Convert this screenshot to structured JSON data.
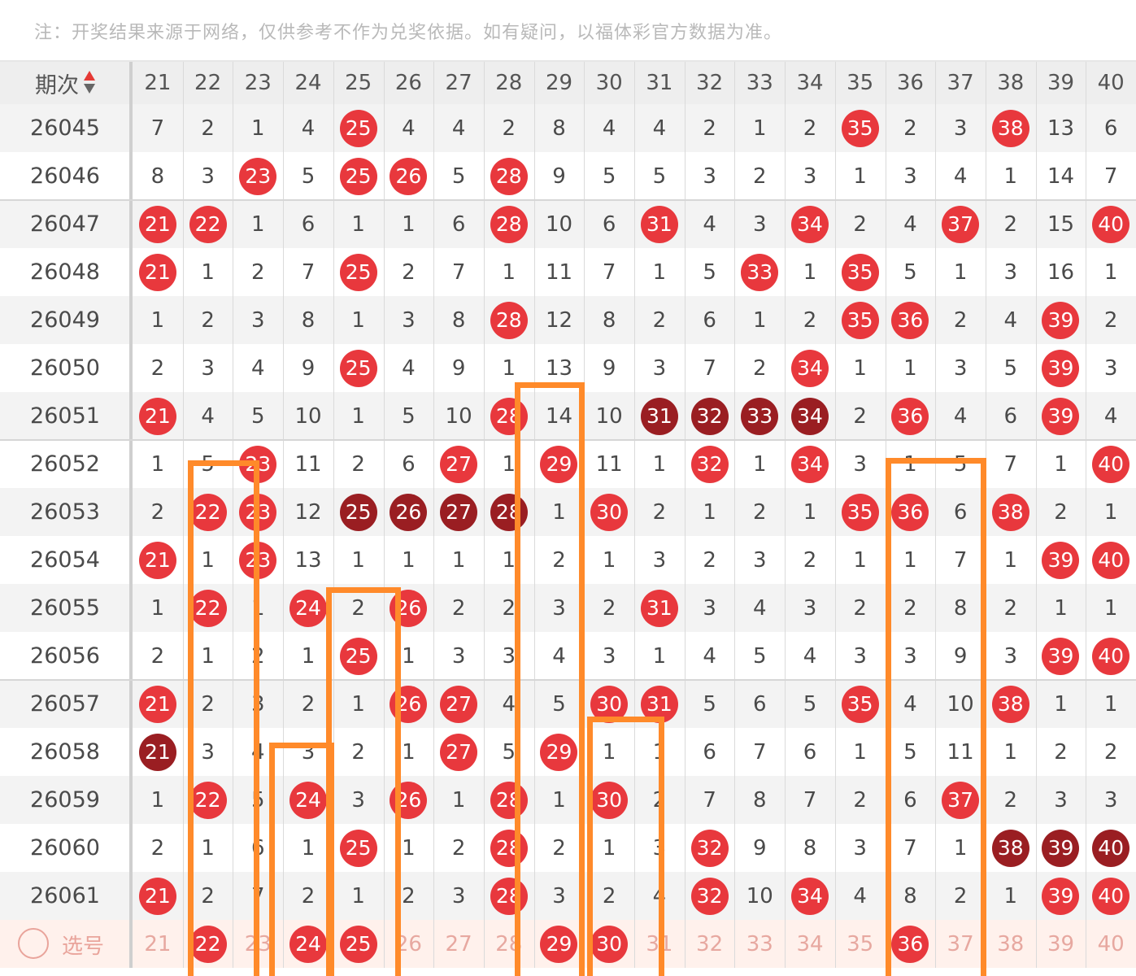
{
  "note": "注：开奖结果来源于网络，仅供参考不作为兑奖依据。如有疑问，以福体彩官方数据为准。",
  "header": {
    "label": "期次",
    "sort_icon": "sort-up-down-icon",
    "columns": [
      "21",
      "22",
      "23",
      "24",
      "25",
      "26",
      "27",
      "28",
      "29",
      "30",
      "31",
      "32",
      "33",
      "34",
      "35",
      "36",
      "37",
      "38",
      "39",
      "40"
    ]
  },
  "colors": {
    "hit": "#e8383d",
    "streak": "#9a1e22",
    "highlight_box": "#ff8a2a"
  },
  "rows": [
    {
      "issue": "26045",
      "cells": [
        "7",
        "2",
        "1",
        "4",
        "25",
        "4",
        "4",
        "2",
        "8",
        "4",
        "4",
        "2",
        "1",
        "2",
        "35",
        "2",
        "3",
        "38",
        "13",
        "6"
      ],
      "hits": [
        4,
        14,
        17
      ],
      "dark": []
    },
    {
      "issue": "26046",
      "cells": [
        "8",
        "3",
        "23",
        "5",
        "25",
        "26",
        "5",
        "28",
        "9",
        "5",
        "5",
        "3",
        "2",
        "3",
        "1",
        "3",
        "4",
        "1",
        "14",
        "7"
      ],
      "hits": [
        2,
        4,
        5,
        7
      ],
      "dark": []
    },
    {
      "issue": "26047",
      "cells": [
        "21",
        "22",
        "1",
        "6",
        "1",
        "1",
        "6",
        "28",
        "10",
        "6",
        "31",
        "4",
        "3",
        "34",
        "2",
        "4",
        "37",
        "2",
        "15",
        "40"
      ],
      "hits": [
        0,
        1,
        7,
        10,
        13,
        16,
        19
      ],
      "dark": []
    },
    {
      "issue": "26048",
      "cells": [
        "21",
        "1",
        "2",
        "7",
        "25",
        "2",
        "7",
        "1",
        "11",
        "7",
        "1",
        "5",
        "33",
        "1",
        "35",
        "5",
        "1",
        "3",
        "16",
        "1"
      ],
      "hits": [
        0,
        4,
        12,
        14
      ],
      "dark": []
    },
    {
      "issue": "26049",
      "cells": [
        "1",
        "2",
        "3",
        "8",
        "1",
        "3",
        "8",
        "28",
        "12",
        "8",
        "2",
        "6",
        "1",
        "2",
        "35",
        "36",
        "2",
        "4",
        "39",
        "2"
      ],
      "hits": [
        7,
        14,
        15,
        18
      ],
      "dark": []
    },
    {
      "issue": "26050",
      "cells": [
        "2",
        "3",
        "4",
        "9",
        "25",
        "4",
        "9",
        "1",
        "13",
        "9",
        "3",
        "7",
        "2",
        "34",
        "1",
        "1",
        "3",
        "5",
        "39",
        "3"
      ],
      "hits": [
        4,
        13,
        18
      ],
      "dark": []
    },
    {
      "issue": "26051",
      "cells": [
        "21",
        "4",
        "5",
        "10",
        "1",
        "5",
        "10",
        "28",
        "14",
        "10",
        "31",
        "32",
        "33",
        "34",
        "2",
        "36",
        "4",
        "6",
        "39",
        "4"
      ],
      "hits": [
        0,
        7,
        15,
        18
      ],
      "dark": [
        10,
        11,
        12,
        13
      ]
    },
    {
      "issue": "26052",
      "cells": [
        "1",
        "5",
        "23",
        "11",
        "2",
        "6",
        "27",
        "1",
        "29",
        "11",
        "1",
        "32",
        "1",
        "34",
        "3",
        "1",
        "5",
        "7",
        "1",
        "40"
      ],
      "hits": [
        2,
        6,
        8,
        11,
        13,
        19
      ],
      "dark": []
    },
    {
      "issue": "26053",
      "cells": [
        "2",
        "22",
        "23",
        "12",
        "25",
        "26",
        "27",
        "28",
        "1",
        "30",
        "2",
        "1",
        "2",
        "1",
        "35",
        "36",
        "6",
        "38",
        "2",
        "1"
      ],
      "hits": [
        1,
        2,
        9,
        14,
        15,
        17
      ],
      "dark": [
        4,
        5,
        6,
        7
      ]
    },
    {
      "issue": "26054",
      "cells": [
        "21",
        "1",
        "23",
        "13",
        "1",
        "1",
        "1",
        "1",
        "2",
        "1",
        "3",
        "2",
        "3",
        "2",
        "1",
        "1",
        "7",
        "1",
        "39",
        "40"
      ],
      "hits": [
        0,
        2,
        18,
        19
      ],
      "dark": []
    },
    {
      "issue": "26055",
      "cells": [
        "1",
        "22",
        "1",
        "24",
        "2",
        "26",
        "2",
        "2",
        "3",
        "2",
        "31",
        "3",
        "4",
        "3",
        "2",
        "2",
        "8",
        "2",
        "1",
        "1"
      ],
      "hits": [
        1,
        3,
        5,
        10
      ],
      "dark": []
    },
    {
      "issue": "26056",
      "cells": [
        "2",
        "1",
        "2",
        "1",
        "25",
        "1",
        "3",
        "3",
        "4",
        "3",
        "1",
        "4",
        "5",
        "4",
        "3",
        "3",
        "9",
        "3",
        "39",
        "40"
      ],
      "hits": [
        4,
        18,
        19
      ],
      "dark": []
    },
    {
      "issue": "26057",
      "cells": [
        "21",
        "2",
        "3",
        "2",
        "1",
        "26",
        "27",
        "4",
        "5",
        "30",
        "31",
        "5",
        "6",
        "5",
        "35",
        "4",
        "10",
        "38",
        "1",
        "1"
      ],
      "hits": [
        0,
        5,
        6,
        9,
        10,
        14,
        17
      ],
      "dark": []
    },
    {
      "issue": "26058",
      "cells": [
        "21",
        "3",
        "4",
        "3",
        "2",
        "1",
        "27",
        "5",
        "29",
        "1",
        "1",
        "6",
        "7",
        "6",
        "1",
        "5",
        "11",
        "1",
        "2",
        "2"
      ],
      "hits": [
        6,
        8
      ],
      "dark": [
        0
      ]
    },
    {
      "issue": "26059",
      "cells": [
        "1",
        "22",
        "5",
        "24",
        "3",
        "26",
        "1",
        "28",
        "1",
        "30",
        "2",
        "7",
        "8",
        "7",
        "2",
        "6",
        "37",
        "2",
        "3",
        "3"
      ],
      "hits": [
        1,
        3,
        5,
        7,
        9,
        16
      ],
      "dark": []
    },
    {
      "issue": "26060",
      "cells": [
        "2",
        "1",
        "6",
        "1",
        "25",
        "1",
        "2",
        "28",
        "2",
        "1",
        "3",
        "32",
        "9",
        "8",
        "3",
        "7",
        "1",
        "38",
        "39",
        "40"
      ],
      "hits": [
        4,
        7,
        11
      ],
      "dark": [
        17,
        18,
        19
      ]
    },
    {
      "issue": "26061",
      "cells": [
        "21",
        "2",
        "7",
        "2",
        "1",
        "2",
        "3",
        "28",
        "3",
        "2",
        "4",
        "32",
        "10",
        "34",
        "4",
        "8",
        "2",
        "1",
        "39",
        "40"
      ],
      "hits": [
        0,
        7,
        11,
        13,
        18,
        19
      ],
      "dark": []
    }
  ],
  "pick": {
    "label": "选号",
    "circle_icon": "radio-circle-icon",
    "cells": [
      "21",
      "22",
      "23",
      "24",
      "25",
      "26",
      "27",
      "28",
      "29",
      "30",
      "31",
      "32",
      "33",
      "34",
      "35",
      "36",
      "37",
      "38",
      "39",
      "40"
    ],
    "selected": [
      1,
      3,
      4,
      8,
      9,
      15
    ]
  }
}
